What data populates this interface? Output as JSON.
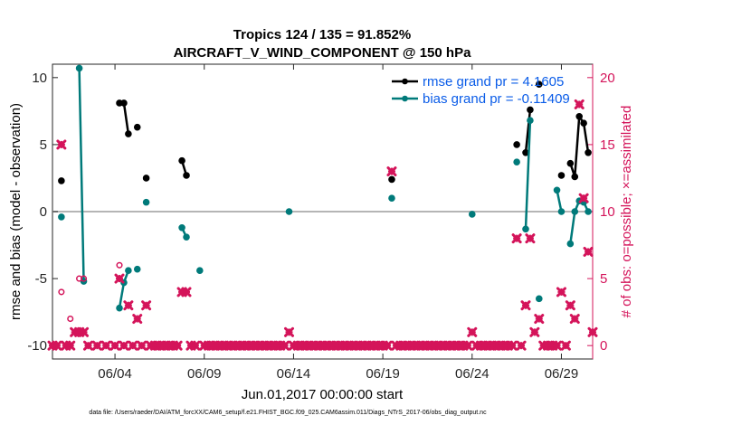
{
  "chart_data": {
    "type": "line",
    "title": "Tropics 124 / 135 = 91.852%",
    "subtitle": "AIRCRAFT_V_WIND_COMPONENT @ 150 hPa",
    "xlabel": "Jun.01,2017 00:00:00 start",
    "ylabel": "rmse and bias (model - observation)",
    "y2label": "# of obs: o=possible; ×=assimilated",
    "footer": "data file: /Users/raeder/DAI/ATM_forcXX/CAM6_setup/f.e21.FHIST_BGC.f09_025.CAM6assim.011/Diags_NTrS_2017-06/obs_diag_output.nc",
    "xlim": [
      0.5,
      30.75
    ],
    "ylim": [
      -11,
      11
    ],
    "y2lim": [
      -1,
      21
    ],
    "x_ticks": [
      {
        "value": 4,
        "label": "06/04"
      },
      {
        "value": 9,
        "label": "06/09"
      },
      {
        "value": 14,
        "label": "06/14"
      },
      {
        "value": 19,
        "label": "06/19"
      },
      {
        "value": 24,
        "label": "06/24"
      },
      {
        "value": 29,
        "label": "06/29"
      }
    ],
    "y_ticks": [
      {
        "value": 10,
        "label": "10"
      },
      {
        "value": 5,
        "label": "5"
      },
      {
        "value": 0,
        "label": "0"
      },
      {
        "value": -5,
        "label": "-5"
      },
      {
        "value": -10,
        "label": "-10"
      }
    ],
    "y2_ticks": [
      {
        "value": 20,
        "label": "20"
      },
      {
        "value": 15,
        "label": "15"
      },
      {
        "value": 10,
        "label": "10"
      },
      {
        "value": 5,
        "label": "5"
      },
      {
        "value": 0,
        "label": "0"
      }
    ],
    "zero_line": 0,
    "legend": {
      "position": "top-right"
    },
    "series": [
      {
        "name": "rmse grand pr = 4.1605",
        "axis": "left",
        "color": "#000000",
        "marker": "circle",
        "x": [
          1.0,
          4.25,
          4.5,
          4.75,
          5.25,
          5.75,
          7.75,
          8.0,
          19.5,
          26.5,
          27.0,
          27.25,
          27.75,
          29.0,
          29.5,
          29.75,
          30.0,
          30.25,
          30.5
        ],
        "y": [
          2.3,
          8.1,
          8.1,
          5.8,
          6.3,
          2.5,
          3.8,
          2.7,
          2.4,
          5.0,
          4.4,
          7.6,
          9.5,
          2.7,
          3.6,
          2.6,
          7.1,
          6.6,
          4.4
        ]
      },
      {
        "name": "bias grand pr = -0.11409",
        "axis": "left",
        "color": "#007a7a",
        "marker": "circle",
        "x": [
          1.0,
          2.0,
          2.25,
          4.25,
          4.5,
          4.75,
          5.25,
          5.75,
          7.75,
          8.0,
          8.75,
          13.75,
          19.5,
          24.0,
          26.5,
          27.0,
          27.25,
          27.75,
          28.75,
          29.0,
          29.5,
          29.75,
          30.0,
          30.25,
          30.5
        ],
        "y": [
          -0.4,
          10.7,
          -5.2,
          -7.2,
          -5.3,
          -4.4,
          -4.3,
          0.7,
          -1.2,
          -1.9,
          -4.4,
          0.0,
          1.0,
          -0.2,
          3.7,
          -1.3,
          6.8,
          -6.5,
          1.6,
          0.0,
          -2.4,
          0.0,
          0.8,
          0.7,
          0.0
        ]
      },
      {
        "name": "obs possible",
        "axis": "right",
        "color": "#d4145a",
        "marker": "open-circle",
        "x": [
          1.0,
          1.5,
          2.0,
          2.25,
          4.25
        ],
        "y": [
          4,
          2,
          5,
          5,
          6
        ]
      },
      {
        "name": "obs assimilated",
        "axis": "right",
        "color": "#d4145a",
        "marker": "x",
        "x": [
          0.5,
          0.75,
          1.0,
          1.25,
          1.5,
          1.75,
          2.0,
          2.25,
          2.5,
          3.0,
          3.5,
          4.0,
          4.25,
          4.5,
          4.75,
          5.0,
          5.25,
          5.5,
          5.75,
          6.0,
          6.25,
          6.5,
          6.75,
          7.0,
          7.25,
          7.5,
          7.75,
          8.0,
          8.25,
          8.5,
          9.0,
          9.25,
          9.5,
          9.75,
          10.0,
          10.25,
          10.5,
          10.75,
          11.0,
          11.25,
          11.5,
          11.75,
          12.0,
          12.25,
          12.5,
          12.75,
          13.0,
          13.25,
          13.5,
          13.75,
          14.0,
          14.25,
          14.5,
          14.75,
          15.0,
          15.25,
          15.5,
          15.75,
          16.0,
          16.25,
          16.5,
          16.75,
          17.0,
          17.25,
          17.5,
          17.75,
          18.0,
          18.25,
          18.5,
          18.75,
          19.0,
          19.25,
          19.5,
          19.75,
          20.0,
          20.25,
          20.5,
          20.75,
          21.0,
          21.25,
          21.5,
          21.75,
          22.0,
          22.25,
          22.5,
          22.75,
          23.0,
          23.25,
          23.5,
          23.75,
          24.0,
          24.25,
          24.5,
          24.75,
          25.0,
          25.25,
          25.5,
          25.75,
          26.0,
          26.25,
          26.5,
          26.75,
          27.0,
          27.25,
          27.5,
          27.75,
          28.0,
          28.25,
          28.5,
          28.75,
          29.0,
          29.25,
          29.5,
          29.75,
          30.0,
          30.25,
          30.5,
          30.75
        ],
        "y": [
          0,
          0,
          15,
          0,
          0,
          1,
          1,
          1,
          0,
          0,
          0,
          0,
          5,
          0,
          3,
          0,
          2,
          0,
          3,
          0,
          0,
          0,
          0,
          0,
          0,
          0,
          4,
          4,
          0,
          0,
          0,
          0,
          0,
          0,
          0,
          0,
          0,
          0,
          0,
          0,
          0,
          0,
          0,
          0,
          0,
          0,
          0,
          0,
          0,
          1,
          0,
          0,
          0,
          0,
          0,
          0,
          0,
          0,
          0,
          0,
          0,
          0,
          0,
          0,
          0,
          0,
          0,
          0,
          0,
          0,
          0,
          0,
          13,
          0,
          0,
          0,
          0,
          0,
          0,
          0,
          0,
          0,
          0,
          0,
          0,
          0,
          0,
          0,
          0,
          0,
          1,
          0,
          0,
          0,
          0,
          0,
          0,
          0,
          0,
          0,
          8,
          0,
          3,
          8,
          1,
          2,
          0,
          0,
          0,
          0,
          4,
          0,
          3,
          2,
          18,
          11,
          7,
          1
        ]
      }
    ]
  }
}
